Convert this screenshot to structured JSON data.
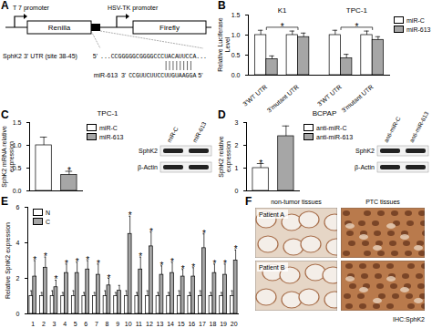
{
  "diagram": {
    "panel": "A",
    "promoters": [
      "T 7 promoter",
      "HSV-TK promoter"
    ],
    "genes": [
      "Renilla",
      "Firefly"
    ],
    "utr": {
      "label": "SphK2 3' UTR (site 38-45)",
      "start": "5'",
      "sequence": "...CCGGGGGCGGGGCCCUACAUUCCA..."
    },
    "mirna": {
      "label": "miR-613",
      "start": "3'",
      "sequence": "CCGUUCUUCCUUGUAAGGA",
      "end": "5'"
    }
  },
  "chart_data": [
    {
      "panel": "B",
      "type": "bar",
      "y_label": "Relative Luciferase Level",
      "groups": [
        "K1",
        "TPC-1"
      ],
      "categories": [
        "3'WT UTR",
        "3'mutant UTR",
        "3'WT UTR",
        "3'mutant UTR"
      ],
      "series": [
        {
          "name": "miR-C",
          "color": "#ffffff",
          "values": [
            1.0,
            1.0,
            1.0,
            1.0
          ],
          "errors": [
            0.12,
            0.1,
            0.12,
            0.1
          ]
        },
        {
          "name": "miR-613",
          "color": "#a6a6a6",
          "values": [
            0.4,
            0.95,
            0.42,
            0.88
          ],
          "errors": [
            0.08,
            0.1,
            0.1,
            0.08
          ]
        }
      ],
      "ylim": [
        0,
        1.5
      ],
      "yticks": [
        {
          "value": 0,
          "label": "0.0"
        },
        {
          "value": 0.5,
          "label": "0.5"
        },
        {
          "value": 1,
          "label": "1.0"
        },
        {
          "value": 1.5,
          "label": "1.5"
        }
      ],
      "annotations": [
        {
          "text": "*",
          "from": 0,
          "to": 1
        },
        {
          "text": "*",
          "from": 2,
          "to": 3
        }
      ],
      "legend": "right"
    },
    {
      "panel": "C",
      "type": "bar",
      "title": "TPC-1",
      "y_label": "SphK2 mRNA relative expression",
      "categories": [
        "miR-C",
        "miR-613"
      ],
      "values": [
        1.0,
        0.35
      ],
      "errors": [
        0.18,
        0.08
      ],
      "colors": [
        "#ffffff",
        "#a6a6a6"
      ],
      "ylim": [
        0,
        1.5
      ],
      "yticks": [
        {
          "value": 0,
          "label": "0.0"
        },
        {
          "value": 0.5,
          "label": "0.5"
        },
        {
          "value": 1,
          "label": "1.0"
        },
        {
          "value": 1.5,
          "label": "1.5"
        }
      ],
      "annotations": [
        {
          "text": "*",
          "index": 1
        }
      ],
      "tick_labels": "y",
      "legend": "right"
    },
    {
      "panel": "D",
      "type": "bar",
      "title": "BCPAP",
      "y_label": "SphK2 relative expression",
      "categories": [
        "anti-miR-C",
        "anti-miR-613"
      ],
      "values": [
        1.0,
        2.4
      ],
      "errors": [
        0.2,
        0.45
      ],
      "colors": [
        "#ffffff",
        "#a6a6a6"
      ],
      "ylim": [
        0,
        3
      ],
      "yticks": [
        0,
        1,
        2,
        3
      ],
      "annotations": [
        {
          "text": "*",
          "index": 0
        }
      ],
      "tick_labels": "y",
      "legend": "right"
    },
    {
      "panel": "E",
      "type": "bar",
      "y_label": "Relative SphK2 expression",
      "categories": [
        "1",
        "2",
        "3",
        "4",
        "5",
        "6",
        "7",
        "8",
        "9",
        "10",
        "11",
        "12",
        "13",
        "14",
        "15",
        "16",
        "17",
        "18",
        "19",
        "20"
      ],
      "series": [
        {
          "name": "N",
          "color": "#ffffff",
          "values": [
            1.0,
            1.0,
            1.0,
            1.0,
            1.0,
            1.0,
            1.0,
            1.0,
            1.0,
            1.0,
            1.0,
            1.0,
            1.0,
            1.0,
            1.0,
            1.0,
            1.0,
            1.0,
            1.0,
            1.0
          ],
          "errors": [
            0.3,
            0.2,
            0.3,
            0.2,
            0.3,
            0.2,
            0.2,
            0.3,
            0.2,
            0.3,
            0.2,
            0.3,
            0.2,
            0.2,
            0.3,
            0.2,
            0.3,
            0.2,
            0.2,
            0.3
          ]
        },
        {
          "name": "C",
          "color": "#a6a6a6",
          "values": [
            2.1,
            2.6,
            1.5,
            2.3,
            2.3,
            2.5,
            2.2,
            1.6,
            1.3,
            4.5,
            2.5,
            3.8,
            2.2,
            2.3,
            2.1,
            2.1,
            3.7,
            2.3,
            2.2,
            3.0
          ],
          "errors": [
            0.9,
            0.6,
            0.4,
            0.5,
            0.6,
            0.5,
            0.6,
            0.4,
            0.3,
            1.0,
            0.7,
            0.8,
            0.5,
            0.6,
            0.4,
            0.5,
            0.8,
            0.5,
            0.6,
            0.6
          ]
        }
      ],
      "ylim": [
        0,
        6
      ],
      "yticks": [
        0,
        2,
        4,
        6
      ],
      "annotations": [
        {
          "text": "*",
          "index": 0,
          "series": "C"
        },
        {
          "text": "*",
          "index": 1,
          "series": "C"
        },
        {
          "text": "*",
          "index": 2,
          "series": "C"
        },
        {
          "text": "*",
          "index": 3,
          "series": "C"
        },
        {
          "text": "*",
          "index": 4,
          "series": "C"
        },
        {
          "text": "*",
          "index": 5,
          "series": "C"
        },
        {
          "text": "*",
          "index": 6,
          "series": "C"
        },
        {
          "text": "*",
          "index": 7,
          "series": "C"
        },
        {
          "text": "*",
          "index": 9,
          "series": "C"
        },
        {
          "text": "*",
          "index": 10,
          "series": "C"
        },
        {
          "text": "*",
          "index": 11,
          "series": "C"
        },
        {
          "text": "*",
          "index": 12,
          "series": "C"
        },
        {
          "text": "*",
          "index": 13,
          "series": "C"
        },
        {
          "text": "*",
          "index": 14,
          "series": "C"
        },
        {
          "text": "*",
          "index": 15,
          "series": "C"
        },
        {
          "text": "*",
          "index": 16,
          "series": "C"
        },
        {
          "text": "*",
          "index": 17,
          "series": "C"
        },
        {
          "text": "*",
          "index": 18,
          "series": "C"
        },
        {
          "text": "*",
          "index": 19,
          "series": "C"
        }
      ],
      "legend": "top-left"
    }
  ],
  "blots": [
    {
      "panel": "C",
      "lanes": [
        "miR-C",
        "miR-613"
      ],
      "proteins": [
        "SphK2",
        "β-Actin"
      ]
    },
    {
      "panel": "D",
      "lanes": [
        "anti-miR-C",
        "anti-miR-613"
      ],
      "proteins": [
        "SphK2",
        "β-Actin"
      ]
    }
  ],
  "ihc": {
    "panel": "F",
    "columns": [
      "non-tumor tissues",
      "PTC tissues"
    ],
    "rows": [
      "Patient A",
      "Patient B"
    ],
    "caption": "IHC:SphK2"
  }
}
